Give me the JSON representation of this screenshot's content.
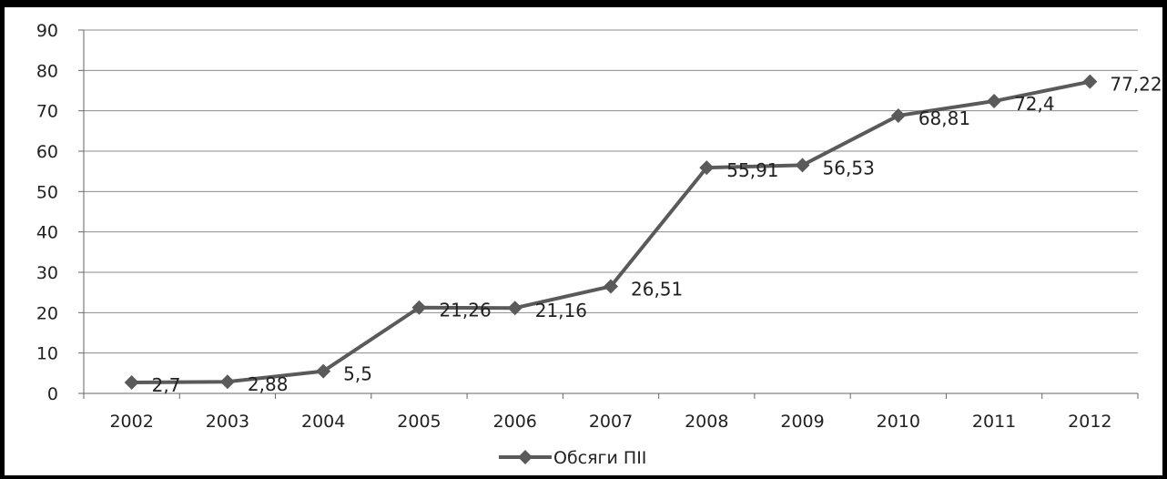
{
  "chart_data": {
    "type": "line",
    "title": "",
    "xlabel": "",
    "ylabel": "",
    "ylim": [
      0,
      90
    ],
    "yticks": [
      0,
      10,
      20,
      30,
      40,
      50,
      60,
      70,
      80,
      90
    ],
    "grid": true,
    "legend_position": "bottom",
    "categories": [
      "2002",
      "2003",
      "2004",
      "2005",
      "2006",
      "2007",
      "2008",
      "2009",
      "2010",
      "2011",
      "2012"
    ],
    "series": [
      {
        "name": "Обсяги ПІІ",
        "values": [
          2.7,
          2.88,
          5.5,
          21.26,
          21.16,
          26.51,
          55.91,
          56.53,
          68.81,
          72.4,
          77.22
        ],
        "data_labels": [
          "2,7",
          "2,88",
          "5,5",
          "21,26",
          "21,16",
          "26,51",
          "55,91",
          "56,53",
          "68,81",
          "72,4",
          "77,22"
        ],
        "color": "#5a5a5a",
        "marker": "diamond"
      }
    ]
  }
}
